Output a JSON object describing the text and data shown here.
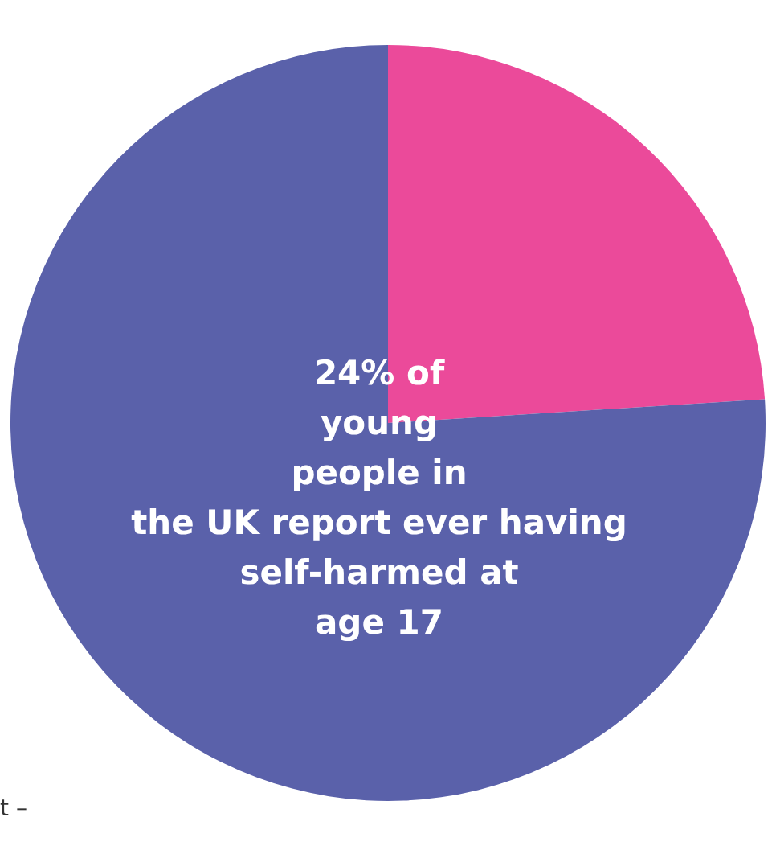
{
  "chart_data": {
    "type": "pie",
    "categories": [
      null,
      null
    ],
    "values": [
      24,
      76
    ],
    "colors": [
      "#eb4a9a",
      "#5a61aa"
    ],
    "legend": false,
    "annotations": [
      "24% of\nyoung\npeople in\nthe UK report ever having\nself-harmed at\nage 17",
      "t –"
    ]
  }
}
